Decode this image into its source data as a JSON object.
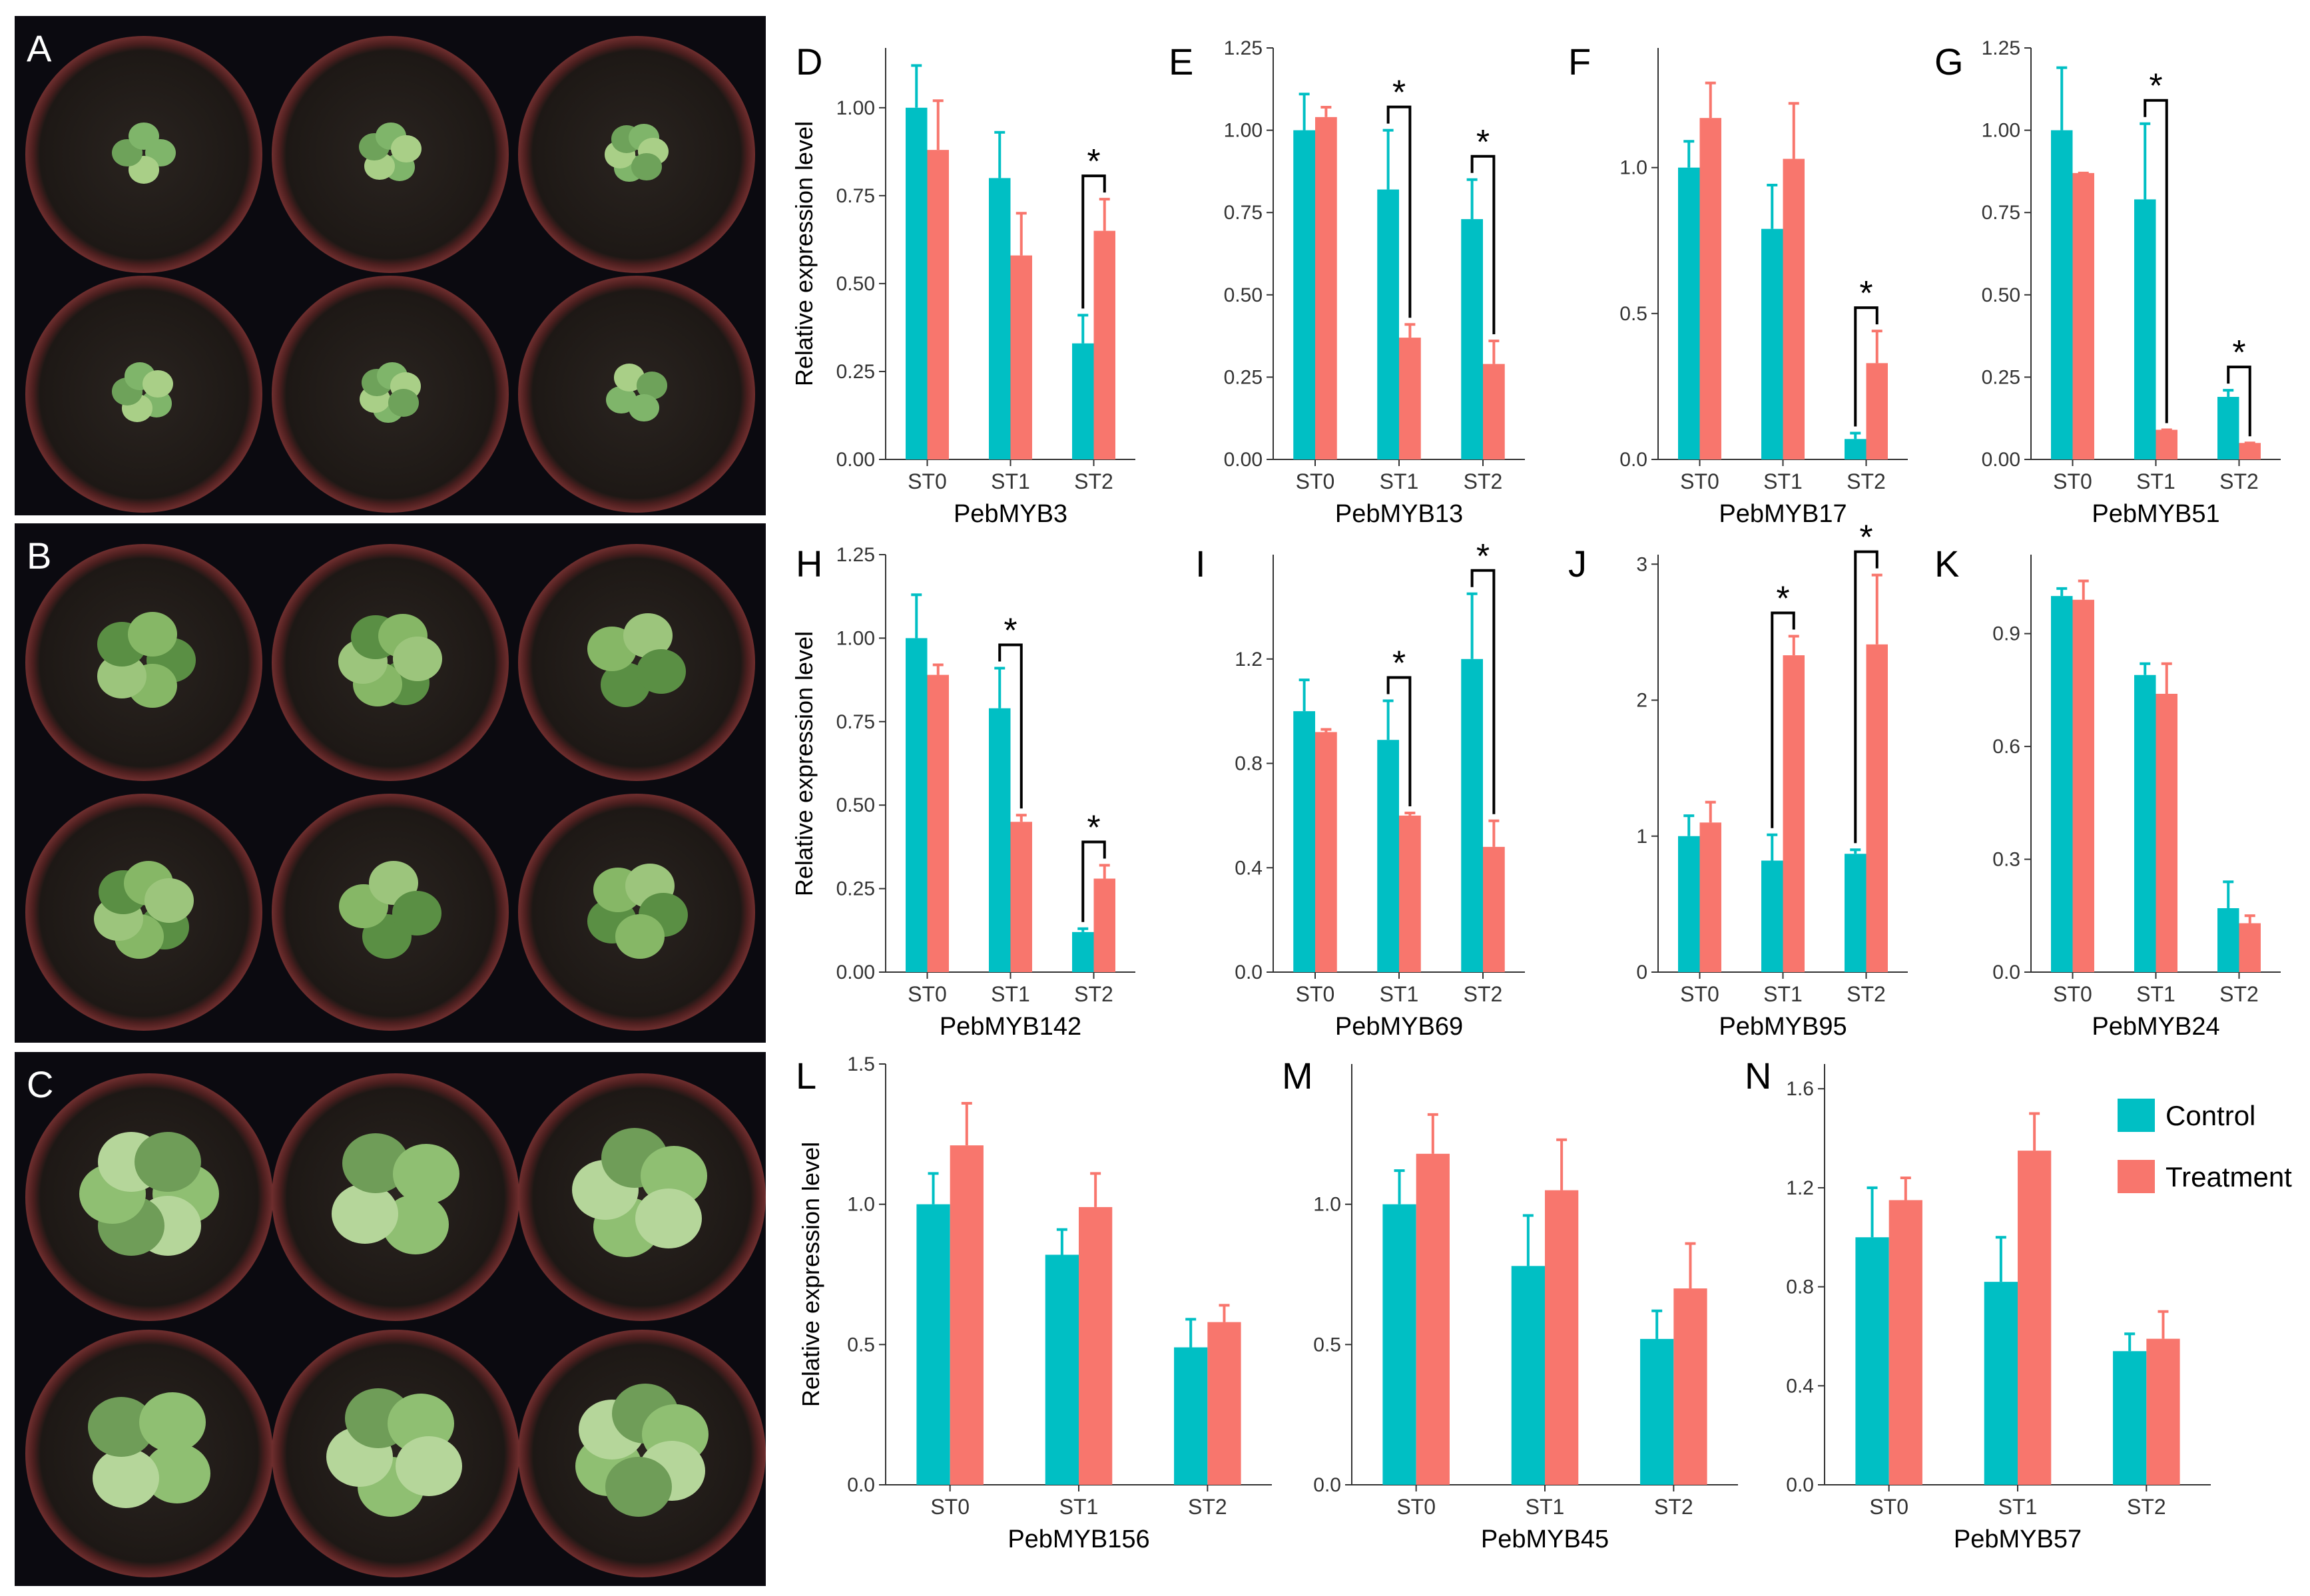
{
  "colors": {
    "control": "#00BFC4",
    "treatment": "#F8766D",
    "axis": "#333333"
  },
  "photos": [
    {
      "letter": "A",
      "description_icon": "seedling-small-icon"
    },
    {
      "letter": "B",
      "description_icon": "seedling-medium-icon"
    },
    {
      "letter": "C",
      "description_icon": "seedling-large-icon"
    }
  ],
  "ylabel": "Relative expression level",
  "legend": {
    "control": "Control",
    "treatment": "Treatment"
  },
  "chart_data": [
    {
      "panel": "D",
      "type": "bar",
      "gene": "PebMYB3",
      "categories": [
        "ST0",
        "ST1",
        "ST2"
      ],
      "ylim": [
        0,
        1.17
      ],
      "ticks": [
        0.0,
        0.25,
        0.5,
        0.75,
        1.0
      ],
      "tickfmt": 2,
      "series": [
        {
          "name": "Control",
          "values": [
            1.0,
            0.8,
            0.33
          ],
          "errors": [
            0.12,
            0.13,
            0.08
          ]
        },
        {
          "name": "Treatment",
          "values": [
            0.88,
            0.58,
            0.65
          ],
          "errors": [
            0.14,
            0.12,
            0.09
          ]
        }
      ],
      "significant": [
        2
      ]
    },
    {
      "panel": "E",
      "type": "bar",
      "gene": "PebMYB13",
      "categories": [
        "ST0",
        "ST1",
        "ST2"
      ],
      "ylim": [
        0,
        1.25
      ],
      "ticks": [
        0.0,
        0.25,
        0.5,
        0.75,
        1.0,
        1.25
      ],
      "tickfmt": 2,
      "series": [
        {
          "name": "Control",
          "values": [
            1.0,
            0.82,
            0.73
          ],
          "errors": [
            0.11,
            0.18,
            0.12
          ]
        },
        {
          "name": "Treatment",
          "values": [
            1.04,
            0.37,
            0.29
          ],
          "errors": [
            0.03,
            0.04,
            0.07
          ]
        }
      ],
      "significant": [
        1,
        2
      ]
    },
    {
      "panel": "F",
      "type": "bar",
      "gene": "PebMYB17",
      "categories": [
        "ST0",
        "ST1",
        "ST2"
      ],
      "ylim": [
        0,
        1.41
      ],
      "ticks": [
        0.0,
        0.5,
        1.0
      ],
      "tickfmt": 1,
      "series": [
        {
          "name": "Control",
          "values": [
            1.0,
            0.79,
            0.07
          ],
          "errors": [
            0.09,
            0.15,
            0.02
          ]
        },
        {
          "name": "Treatment",
          "values": [
            1.17,
            1.03,
            0.33
          ],
          "errors": [
            0.12,
            0.19,
            0.11
          ]
        }
      ],
      "significant": [
        2
      ]
    },
    {
      "panel": "G",
      "type": "bar",
      "gene": "PebMYB51",
      "categories": [
        "ST0",
        "ST1",
        "ST2"
      ],
      "ylim": [
        0,
        1.25
      ],
      "ticks": [
        0.0,
        0.25,
        0.5,
        0.75,
        1.0,
        1.25
      ],
      "tickfmt": 2,
      "series": [
        {
          "name": "Control",
          "values": [
            1.0,
            0.79,
            0.19
          ],
          "errors": [
            0.19,
            0.23,
            0.02
          ]
        },
        {
          "name": "Treatment",
          "values": [
            0.87,
            0.09,
            0.05
          ],
          "errors": [
            0.0,
            0.0,
            0.0
          ]
        }
      ],
      "significant": [
        1,
        2
      ]
    },
    {
      "panel": "H",
      "type": "bar",
      "gene": "PebMYB142",
      "categories": [
        "ST0",
        "ST1",
        "ST2"
      ],
      "ylim": [
        0,
        1.25
      ],
      "ticks": [
        0.0,
        0.25,
        0.5,
        0.75,
        1.0,
        1.25
      ],
      "tickfmt": 2,
      "series": [
        {
          "name": "Control",
          "values": [
            1.0,
            0.79,
            0.12
          ],
          "errors": [
            0.13,
            0.12,
            0.01
          ]
        },
        {
          "name": "Treatment",
          "values": [
            0.89,
            0.45,
            0.28
          ],
          "errors": [
            0.03,
            0.02,
            0.04
          ]
        }
      ],
      "significant": [
        1,
        2
      ]
    },
    {
      "panel": "I",
      "type": "bar",
      "gene": "PebMYB69",
      "categories": [
        "ST0",
        "ST1",
        "ST2"
      ],
      "ylim": [
        0,
        1.6
      ],
      "ticks": [
        0.0,
        0.4,
        0.8,
        1.2
      ],
      "tickfmt": 1,
      "series": [
        {
          "name": "Control",
          "values": [
            1.0,
            0.89,
            1.2
          ],
          "errors": [
            0.12,
            0.15,
            0.25
          ]
        },
        {
          "name": "Treatment",
          "values": [
            0.92,
            0.6,
            0.48
          ],
          "errors": [
            0.01,
            0.01,
            0.1
          ]
        }
      ],
      "significant": [
        1,
        2
      ]
    },
    {
      "panel": "J",
      "type": "bar",
      "gene": "PebMYB95",
      "categories": [
        "ST0",
        "ST1",
        "ST2"
      ],
      "ylim": [
        0,
        3.07
      ],
      "ticks": [
        0,
        1,
        2,
        3
      ],
      "tickfmt": 0,
      "series": [
        {
          "name": "Control",
          "values": [
            1.0,
            0.82,
            0.87
          ],
          "errors": [
            0.15,
            0.19,
            0.03
          ]
        },
        {
          "name": "Treatment",
          "values": [
            1.1,
            2.33,
            2.41
          ],
          "errors": [
            0.15,
            0.14,
            0.51
          ]
        }
      ],
      "significant": [
        1,
        2
      ]
    },
    {
      "panel": "K",
      "type": "bar",
      "gene": "PebMYB24",
      "categories": [
        "ST0",
        "ST1",
        "ST2"
      ],
      "ylim": [
        0,
        1.11
      ],
      "ticks": [
        0.0,
        0.3,
        0.6,
        0.9
      ],
      "tickfmt": 1,
      "series": [
        {
          "name": "Control",
          "values": [
            1.0,
            0.79,
            0.17
          ],
          "errors": [
            0.02,
            0.03,
            0.07
          ]
        },
        {
          "name": "Treatment",
          "values": [
            0.99,
            0.74,
            0.13
          ],
          "errors": [
            0.05,
            0.08,
            0.02
          ]
        }
      ],
      "significant": []
    },
    {
      "panel": "L",
      "type": "bar",
      "gene": "PebMYB156",
      "categories": [
        "ST0",
        "ST1",
        "ST2"
      ],
      "ylim": [
        0,
        1.5
      ],
      "ticks": [
        0.0,
        0.5,
        1.0,
        1.5
      ],
      "tickfmt": 1,
      "series": [
        {
          "name": "Control",
          "values": [
            1.0,
            0.82,
            0.49
          ],
          "errors": [
            0.11,
            0.09,
            0.1
          ]
        },
        {
          "name": "Treatment",
          "values": [
            1.21,
            0.99,
            0.58
          ],
          "errors": [
            0.15,
            0.12,
            0.06
          ]
        }
      ],
      "significant": []
    },
    {
      "panel": "M",
      "type": "bar",
      "gene": "PebMYB45",
      "categories": [
        "ST0",
        "ST1",
        "ST2"
      ],
      "ylim": [
        0,
        1.5
      ],
      "ticks": [
        0.0,
        0.5,
        1.0
      ],
      "tickfmt": 1,
      "series": [
        {
          "name": "Control",
          "values": [
            1.0,
            0.78,
            0.52
          ],
          "errors": [
            0.12,
            0.18,
            0.1
          ]
        },
        {
          "name": "Treatment",
          "values": [
            1.18,
            1.05,
            0.7
          ],
          "errors": [
            0.14,
            0.18,
            0.16
          ]
        }
      ],
      "significant": []
    },
    {
      "panel": "N",
      "type": "bar",
      "gene": "PebMYB57",
      "categories": [
        "ST0",
        "ST1",
        "ST2"
      ],
      "ylim": [
        0,
        1.7
      ],
      "ticks": [
        0.0,
        0.4,
        0.8,
        1.2,
        1.6
      ],
      "tickfmt": 1,
      "series": [
        {
          "name": "Control",
          "values": [
            1.0,
            0.82,
            0.54
          ],
          "errors": [
            0.2,
            0.18,
            0.07
          ]
        },
        {
          "name": "Treatment",
          "values": [
            1.15,
            1.35,
            0.59
          ],
          "errors": [
            0.09,
            0.15,
            0.11
          ]
        }
      ],
      "significant": []
    }
  ]
}
